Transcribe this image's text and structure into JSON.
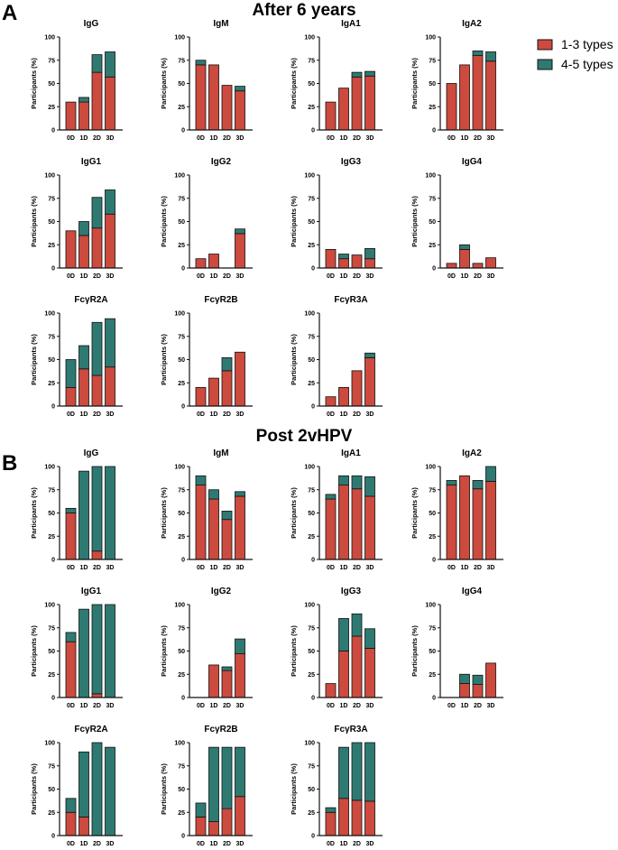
{
  "figure": {
    "panel_labels": [
      "A",
      "B"
    ],
    "section_titles": [
      "After 6 years",
      "Post 2vHPV"
    ],
    "legend": [
      {
        "label": "1-3 types",
        "color": "#cc4a3e"
      },
      {
        "label": "4-5 types",
        "color": "#2e7a72"
      }
    ],
    "colors": {
      "low": "#cc4a3e",
      "high": "#2e7a72",
      "axis": "#111111"
    }
  },
  "chart_data": [
    {
      "section": "After 6 years",
      "type": "bar",
      "stacked": true,
      "title": "IgG",
      "categories": [
        "0D",
        "1D",
        "2D",
        "3D"
      ],
      "series": [
        {
          "name": "1-3 types",
          "values": [
            30,
            30,
            62,
            57
          ]
        },
        {
          "name": "4-5 types",
          "values": [
            0,
            5,
            19,
            27
          ]
        }
      ],
      "ylabel": "Participants (%)",
      "ylim": [
        0,
        100
      ],
      "yticks": [
        0,
        25,
        50,
        75,
        100
      ]
    },
    {
      "section": "After 6 years",
      "type": "bar",
      "stacked": true,
      "title": "IgM",
      "categories": [
        "0D",
        "1D",
        "2D",
        "3D"
      ],
      "series": [
        {
          "name": "1-3 types",
          "values": [
            70,
            70,
            48,
            42
          ]
        },
        {
          "name": "4-5 types",
          "values": [
            5,
            0,
            0,
            5
          ]
        }
      ],
      "ylabel": "Participants (%)",
      "ylim": [
        0,
        100
      ],
      "yticks": [
        0,
        25,
        50,
        75,
        100
      ]
    },
    {
      "section": "After 6 years",
      "type": "bar",
      "stacked": true,
      "title": "IgA1",
      "categories": [
        "0D",
        "1D",
        "2D",
        "3D"
      ],
      "series": [
        {
          "name": "1-3 types",
          "values": [
            30,
            45,
            57,
            58
          ]
        },
        {
          "name": "4-5 types",
          "values": [
            0,
            0,
            5,
            5
          ]
        }
      ],
      "ylabel": "Participants (%)",
      "ylim": [
        0,
        100
      ],
      "yticks": [
        0,
        25,
        50,
        75,
        100
      ]
    },
    {
      "section": "After 6 years",
      "type": "bar",
      "stacked": true,
      "title": "IgA2",
      "categories": [
        "0D",
        "1D",
        "2D",
        "3D"
      ],
      "series": [
        {
          "name": "1-3 types",
          "values": [
            50,
            70,
            80,
            74
          ]
        },
        {
          "name": "4-5 types",
          "values": [
            0,
            0,
            5,
            10
          ]
        }
      ],
      "ylabel": "Participants (%)",
      "ylim": [
        0,
        100
      ],
      "yticks": [
        0,
        25,
        50,
        75,
        100
      ]
    },
    {
      "section": "After 6 years",
      "type": "bar",
      "stacked": true,
      "title": "IgG1",
      "categories": [
        "0D",
        "1D",
        "2D",
        "3D"
      ],
      "series": [
        {
          "name": "1-3 types",
          "values": [
            40,
            35,
            43,
            58
          ]
        },
        {
          "name": "4-5 types",
          "values": [
            0,
            15,
            33,
            26
          ]
        }
      ],
      "ylabel": "Participants (%)",
      "ylim": [
        0,
        100
      ],
      "yticks": [
        0,
        25,
        50,
        75,
        100
      ]
    },
    {
      "section": "After 6 years",
      "type": "bar",
      "stacked": true,
      "title": "IgG2",
      "categories": [
        "0D",
        "1D",
        "2D",
        "3D"
      ],
      "series": [
        {
          "name": "1-3 types",
          "values": [
            10,
            15,
            0,
            37
          ]
        },
        {
          "name": "4-5 types",
          "values": [
            0,
            0,
            0,
            5
          ]
        }
      ],
      "ylabel": "Participants (%)",
      "ylim": [
        0,
        100
      ],
      "yticks": [
        0,
        25,
        50,
        75,
        100
      ]
    },
    {
      "section": "After 6 years",
      "type": "bar",
      "stacked": true,
      "title": "IgG3",
      "categories": [
        "0D",
        "1D",
        "2D",
        "3D"
      ],
      "series": [
        {
          "name": "1-3 types",
          "values": [
            20,
            10,
            14,
            10
          ]
        },
        {
          "name": "4-5 types",
          "values": [
            0,
            5,
            0,
            11
          ]
        }
      ],
      "ylabel": "Participants (%)",
      "ylim": [
        0,
        100
      ],
      "yticks": [
        0,
        25,
        50,
        75,
        100
      ]
    },
    {
      "section": "After 6 years",
      "type": "bar",
      "stacked": true,
      "title": "IgG4",
      "categories": [
        "0D",
        "1D",
        "2D",
        "3D"
      ],
      "series": [
        {
          "name": "1-3 types",
          "values": [
            5,
            20,
            5,
            11
          ]
        },
        {
          "name": "4-5 types",
          "values": [
            0,
            5,
            0,
            0
          ]
        }
      ],
      "ylabel": "Participants (%)",
      "ylim": [
        0,
        100
      ],
      "yticks": [
        0,
        25,
        50,
        75,
        100
      ]
    },
    {
      "section": "After 6 years",
      "type": "bar",
      "stacked": true,
      "title": "FcγR2A",
      "categories": [
        "0D",
        "1D",
        "2D",
        "3D"
      ],
      "series": [
        {
          "name": "1-3 types",
          "values": [
            20,
            40,
            33,
            42
          ]
        },
        {
          "name": "4-5 types",
          "values": [
            30,
            25,
            57,
            52
          ]
        }
      ],
      "ylabel": "Participants (%)",
      "ylim": [
        0,
        100
      ],
      "yticks": [
        0,
        25,
        50,
        75,
        100
      ]
    },
    {
      "section": "After 6 years",
      "type": "bar",
      "stacked": true,
      "title": "FcγR2B",
      "categories": [
        "0D",
        "1D",
        "2D",
        "3D"
      ],
      "series": [
        {
          "name": "1-3 types",
          "values": [
            20,
            30,
            38,
            58
          ]
        },
        {
          "name": "4-5 types",
          "values": [
            0,
            0,
            14,
            0
          ]
        }
      ],
      "ylabel": "Participants (%)",
      "ylim": [
        0,
        100
      ],
      "yticks": [
        0,
        25,
        50,
        75,
        100
      ]
    },
    {
      "section": "After 6 years",
      "type": "bar",
      "stacked": true,
      "title": "FcγR3A",
      "categories": [
        "0D",
        "1D",
        "2D",
        "3D"
      ],
      "series": [
        {
          "name": "1-3 types",
          "values": [
            10,
            20,
            38,
            52
          ]
        },
        {
          "name": "4-5 types",
          "values": [
            0,
            0,
            0,
            5
          ]
        }
      ],
      "ylabel": "Participants (%)",
      "ylim": [
        0,
        100
      ],
      "yticks": [
        0,
        25,
        50,
        75,
        100
      ]
    },
    {
      "section": "Post 2vHPV",
      "type": "bar",
      "stacked": true,
      "title": "IgG",
      "categories": [
        "0D",
        "1D",
        "2D",
        "3D"
      ],
      "series": [
        {
          "name": "1-3 types",
          "values": [
            50,
            0,
            9,
            0
          ]
        },
        {
          "name": "4-5 types",
          "values": [
            5,
            95,
            91,
            100
          ]
        }
      ],
      "ylabel": "Participants (%)",
      "ylim": [
        0,
        100
      ],
      "yticks": [
        0,
        25,
        50,
        75,
        100
      ]
    },
    {
      "section": "Post 2vHPV",
      "type": "bar",
      "stacked": true,
      "title": "IgM",
      "categories": [
        "0D",
        "1D",
        "2D",
        "3D"
      ],
      "series": [
        {
          "name": "1-3 types",
          "values": [
            80,
            65,
            43,
            68
          ]
        },
        {
          "name": "4-5 types",
          "values": [
            10,
            10,
            9,
            5
          ]
        }
      ],
      "ylabel": "Participants (%)",
      "ylim": [
        0,
        100
      ],
      "yticks": [
        0,
        25,
        50,
        75,
        100
      ]
    },
    {
      "section": "Post 2vHPV",
      "type": "bar",
      "stacked": true,
      "title": "IgA1",
      "categories": [
        "0D",
        "1D",
        "2D",
        "3D"
      ],
      "series": [
        {
          "name": "1-3 types",
          "values": [
            65,
            80,
            76,
            68
          ]
        },
        {
          "name": "4-5 types",
          "values": [
            5,
            10,
            14,
            21
          ]
        }
      ],
      "ylabel": "Participants (%)",
      "ylim": [
        0,
        100
      ],
      "yticks": [
        0,
        25,
        50,
        75,
        100
      ]
    },
    {
      "section": "Post 2vHPV",
      "type": "bar",
      "stacked": true,
      "title": "IgA2",
      "categories": [
        "0D",
        "1D",
        "2D",
        "3D"
      ],
      "series": [
        {
          "name": "1-3 types",
          "values": [
            80,
            90,
            76,
            84
          ]
        },
        {
          "name": "4-5 types",
          "values": [
            5,
            0,
            9,
            16
          ]
        }
      ],
      "ylabel": "Participants (%)",
      "ylim": [
        0,
        100
      ],
      "yticks": [
        0,
        25,
        50,
        75,
        100
      ]
    },
    {
      "section": "Post 2vHPV",
      "type": "bar",
      "stacked": true,
      "title": "IgG1",
      "categories": [
        "0D",
        "1D",
        "2D",
        "3D"
      ],
      "series": [
        {
          "name": "1-3 types",
          "values": [
            60,
            0,
            4,
            0
          ]
        },
        {
          "name": "4-5 types",
          "values": [
            10,
            95,
            96,
            100
          ]
        }
      ],
      "ylabel": "Participants (%)",
      "ylim": [
        0,
        100
      ],
      "yticks": [
        0,
        25,
        50,
        75,
        100
      ]
    },
    {
      "section": "Post 2vHPV",
      "type": "bar",
      "stacked": true,
      "title": "IgG2",
      "categories": [
        "0D",
        "1D",
        "2D",
        "3D"
      ],
      "series": [
        {
          "name": "1-3 types",
          "values": [
            0,
            35,
            29,
            47
          ]
        },
        {
          "name": "4-5 types",
          "values": [
            0,
            0,
            4,
            16
          ]
        }
      ],
      "ylabel": "Participants (%)",
      "ylim": [
        0,
        100
      ],
      "yticks": [
        0,
        25,
        50,
        75,
        100
      ]
    },
    {
      "section": "Post 2vHPV",
      "type": "bar",
      "stacked": true,
      "title": "IgG3",
      "categories": [
        "0D",
        "1D",
        "2D",
        "3D"
      ],
      "series": [
        {
          "name": "1-3 types",
          "values": [
            15,
            50,
            66,
            53
          ]
        },
        {
          "name": "4-5 types",
          "values": [
            0,
            35,
            24,
            21
          ]
        }
      ],
      "ylabel": "Participants (%)",
      "ylim": [
        0,
        100
      ],
      "yticks": [
        0,
        25,
        50,
        75,
        100
      ]
    },
    {
      "section": "Post 2vHPV",
      "type": "bar",
      "stacked": true,
      "title": "IgG4",
      "categories": [
        "0D",
        "1D",
        "2D",
        "3D"
      ],
      "series": [
        {
          "name": "1-3 types",
          "values": [
            0,
            15,
            14,
            37
          ]
        },
        {
          "name": "4-5 types",
          "values": [
            0,
            10,
            10,
            0
          ]
        }
      ],
      "ylabel": "Participants (%)",
      "ylim": [
        0,
        100
      ],
      "yticks": [
        0,
        25,
        50,
        75,
        100
      ]
    },
    {
      "section": "Post 2vHPV",
      "type": "bar",
      "stacked": true,
      "title": "FcγR2A",
      "categories": [
        "0D",
        "1D",
        "2D",
        "3D"
      ],
      "series": [
        {
          "name": "1-3 types",
          "values": [
            25,
            20,
            0,
            0
          ]
        },
        {
          "name": "4-5 types",
          "values": [
            15,
            70,
            100,
            95
          ]
        }
      ],
      "ylabel": "Participants (%)",
      "ylim": [
        0,
        100
      ],
      "yticks": [
        0,
        25,
        50,
        75,
        100
      ]
    },
    {
      "section": "Post 2vHPV",
      "type": "bar",
      "stacked": true,
      "title": "FcγR2B",
      "categories": [
        "0D",
        "1D",
        "2D",
        "3D"
      ],
      "series": [
        {
          "name": "1-3 types",
          "values": [
            20,
            15,
            29,
            42
          ]
        },
        {
          "name": "4-5 types",
          "values": [
            15,
            80,
            66,
            53
          ]
        }
      ],
      "ylabel": "Participants (%)",
      "ylim": [
        0,
        100
      ],
      "yticks": [
        0,
        25,
        50,
        75,
        100
      ]
    },
    {
      "section": "Post 2vHPV",
      "type": "bar",
      "stacked": true,
      "title": "FcγR3A",
      "categories": [
        "0D",
        "1D",
        "2D",
        "3D"
      ],
      "series": [
        {
          "name": "1-3 types",
          "values": [
            25,
            40,
            38,
            37
          ]
        },
        {
          "name": "4-5 types",
          "values": [
            5,
            55,
            62,
            63
          ]
        }
      ],
      "ylabel": "Participants (%)",
      "ylim": [
        0,
        100
      ],
      "yticks": [
        0,
        25,
        50,
        75,
        100
      ]
    }
  ]
}
